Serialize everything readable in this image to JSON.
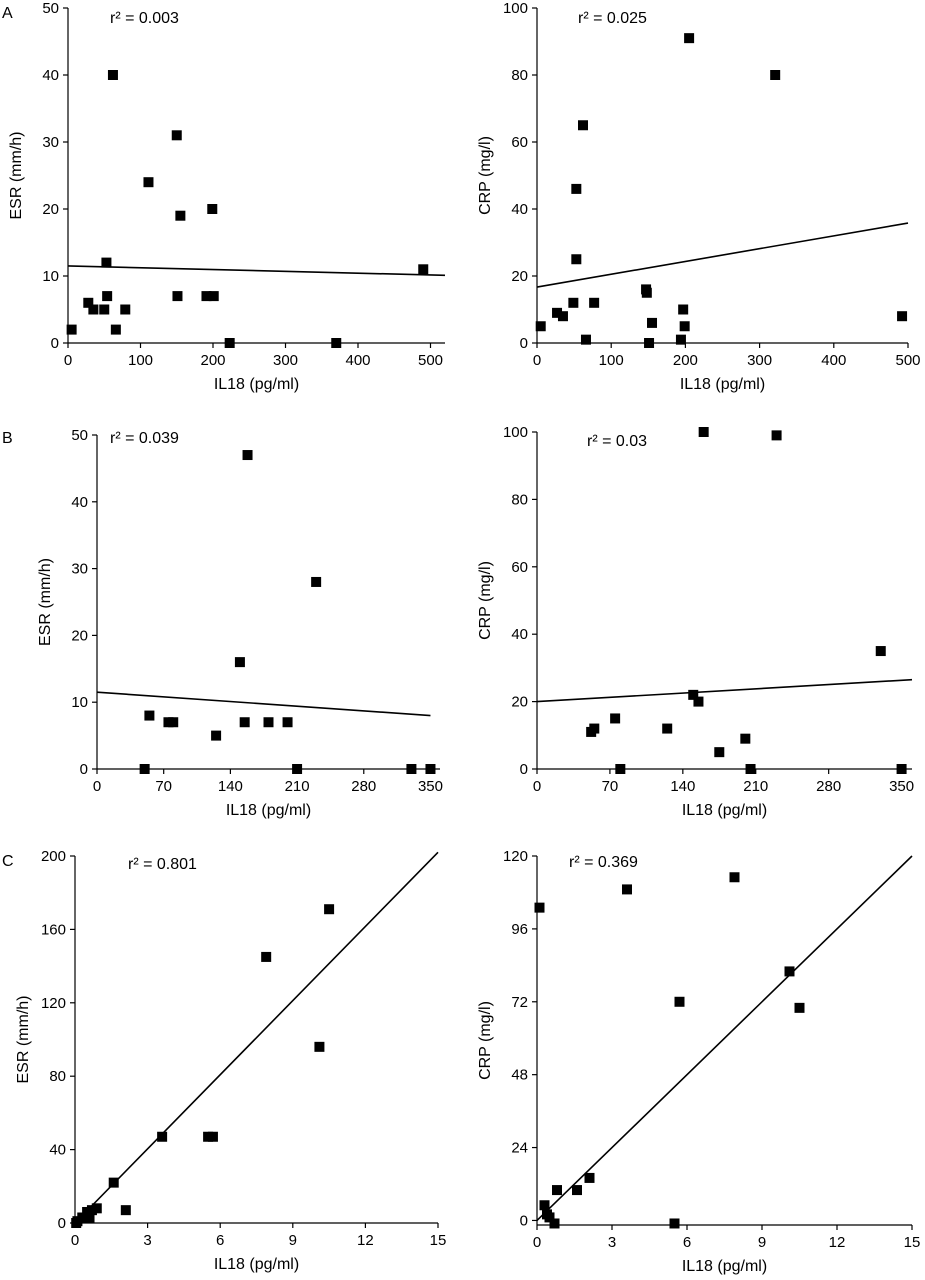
{
  "chart_data": [
    {
      "type": "scatter",
      "panel": "A",
      "annotation": "r² = 0.003",
      "x_label": "IL18 (pg/ml)",
      "y_label": "ESR (mm/h)",
      "xlim": [
        0,
        520
      ],
      "ylim": [
        0,
        50
      ],
      "xticks": [
        0,
        100,
        200,
        300,
        400,
        500
      ],
      "yticks": [
        0,
        10,
        20,
        30,
        40,
        50
      ],
      "series": [
        {
          "color": "#000000",
          "x": [
            5,
            62,
            150,
            111,
            155,
            199,
            53,
            54,
            28,
            35,
            50,
            79,
            66,
            151,
            191,
            201,
            223,
            370,
            490
          ],
          "values": [
            2,
            40,
            31,
            24,
            19,
            20,
            12,
            7,
            6,
            5,
            5,
            5,
            2,
            7,
            7,
            7,
            0,
            0,
            11
          ]
        }
      ],
      "fit_line": {
        "x": [
          0,
          520
        ],
        "y": [
          11.5,
          10.1
        ]
      }
    },
    {
      "type": "scatter",
      "annotation": "r² = 0.025",
      "x_label": "IL18 (pg/ml)",
      "y_label": "CRP (mg/l)",
      "xlim": [
        0,
        500
      ],
      "ylim": [
        0,
        100
      ],
      "xticks": [
        0,
        100,
        200,
        300,
        400,
        500
      ],
      "yticks": [
        0,
        20,
        40,
        60,
        80,
        100
      ],
      "series": [
        {
          "color": "#000000",
          "x": [
            5,
            205,
            321,
            62,
            53,
            53,
            27,
            35,
            49,
            77,
            66,
            147,
            148,
            155,
            151,
            197,
            199,
            194,
            492
          ],
          "values": [
            5,
            91,
            80,
            65,
            46,
            25,
            9,
            8,
            12,
            12,
            1,
            16,
            15,
            6,
            0,
            10,
            5,
            1,
            8
          ]
        }
      ],
      "fit_line": {
        "x": [
          0,
          500
        ],
        "y": [
          16.7,
          35.8
        ]
      }
    },
    {
      "type": "scatter",
      "panel": "B",
      "annotation": "r² = 0.039",
      "x_label": "IL18 (pg/ml)",
      "y_label": "ESR (mm/h)",
      "xlim": [
        0,
        360
      ],
      "ylim": [
        0,
        50
      ],
      "xticks": [
        0,
        70,
        140,
        210,
        280,
        350
      ],
      "yticks": [
        0,
        10,
        20,
        30,
        40,
        50
      ],
      "series": [
        {
          "color": "#000000",
          "x": [
            50,
            55,
            75,
            80,
            125,
            150,
            158,
            155,
            180,
            200,
            210,
            230,
            330,
            350
          ],
          "values": [
            0,
            8,
            7,
            7,
            5,
            16,
            47,
            7,
            7,
            7,
            0,
            28,
            0,
            0
          ]
        }
      ],
      "fit_line": {
        "x": [
          0,
          350
        ],
        "y": [
          11.5,
          8
        ]
      }
    },
    {
      "type": "scatter",
      "annotation": "r² = 0.03",
      "x_label": "IL18 (pg/ml)",
      "y_label": "CRP (mg/l)",
      "xlim": [
        0,
        360
      ],
      "ylim": [
        0,
        100
      ],
      "xticks": [
        0,
        70,
        140,
        210,
        280,
        350
      ],
      "yticks": [
        0,
        20,
        40,
        60,
        80,
        100
      ],
      "series": [
        {
          "color": "#000000",
          "x": [
            52,
            55,
            75,
            80,
            125,
            150,
            155,
            160,
            175,
            200,
            205,
            230,
            330,
            350
          ],
          "values": [
            11,
            12,
            15,
            0,
            12,
            22,
            20,
            100,
            5,
            9,
            0,
            99,
            35,
            0
          ]
        }
      ],
      "fit_line": {
        "x": [
          0,
          360
        ],
        "y": [
          20,
          26.5
        ]
      }
    },
    {
      "type": "scatter",
      "panel": "C",
      "annotation": "r² = 0.801",
      "x_label": "IL18 (pg/ml)",
      "y_label": "ESR (mm/h)",
      "xlim": [
        0,
        15
      ],
      "ylim": [
        0,
        200
      ],
      "xticks": [
        0,
        3,
        6,
        9,
        12,
        15
      ],
      "yticks": [
        0,
        40,
        80,
        120,
        160,
        200
      ],
      "series": [
        {
          "color": "#000000",
          "x": [
            0.05,
            0.1,
            0.3,
            0.5,
            0.6,
            0.7,
            0.9,
            1.6,
            2.1,
            3.6,
            5.5,
            5.7,
            7.9,
            10.1,
            10.5
          ],
          "values": [
            0,
            1,
            3,
            6,
            3,
            7,
            8,
            22,
            7,
            47,
            47,
            47,
            145,
            96,
            171
          ]
        }
      ],
      "fit_line": {
        "x": [
          0,
          15
        ],
        "y": [
          0,
          202
        ]
      }
    },
    {
      "type": "scatter",
      "annotation": "r² = 0.369",
      "x_label": "IL18 (pg/ml)",
      "y_label": "CRP (mg/l)",
      "xlim": [
        0,
        15
      ],
      "ylim": [
        -1.5,
        120
      ],
      "xticks": [
        0,
        3,
        6,
        9,
        12,
        15
      ],
      "yticks": [
        0,
        24,
        48,
        72,
        96,
        120
      ],
      "series": [
        {
          "color": "#000000",
          "x": [
            0.1,
            0.3,
            0.4,
            0.5,
            0.7,
            0.8,
            1.6,
            2.1,
            3.6,
            5.5,
            5.7,
            7.9,
            10.1,
            10.5
          ],
          "values": [
            103,
            5,
            2,
            1,
            -1,
            10,
            10,
            14,
            109,
            -1,
            72,
            113,
            82,
            70
          ]
        }
      ],
      "fit_line": {
        "x": [
          0,
          15
        ],
        "y": [
          0,
          120
        ]
      }
    }
  ]
}
